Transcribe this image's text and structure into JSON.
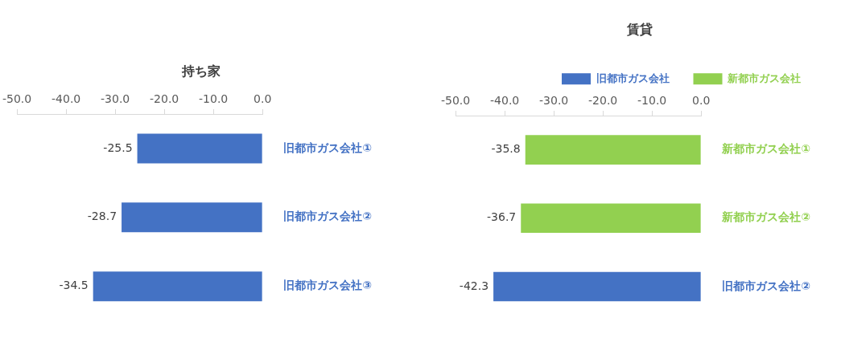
{
  "chart_data": [
    {
      "type": "bar",
      "orientation": "horizontal",
      "title": "持ち家",
      "categories": [
        "旧都市ガス会社①",
        "旧都市ガス会社②",
        "旧都市ガス会社③"
      ],
      "values": [
        -25.5,
        -28.7,
        -34.5
      ],
      "colors": [
        "#4472c4",
        "#4472c4",
        "#4472c4"
      ],
      "xlim": [
        -50,
        0
      ],
      "xticks": [
        {
          "value": -50,
          "label": "-50.0"
        },
        {
          "value": -40,
          "label": "-40.0"
        },
        {
          "value": -30,
          "label": "-30.0"
        },
        {
          "value": -20,
          "label": "-20.0"
        },
        {
          "value": -10,
          "label": "-10.0"
        },
        {
          "value": 0,
          "label": "0.0"
        }
      ],
      "data_labels": true
    },
    {
      "type": "bar",
      "orientation": "horizontal",
      "title": "賃貸",
      "categories": [
        "新都市ガス会社①",
        "新都市ガス会社②",
        "旧都市ガス会社②"
      ],
      "series": [
        {
          "name": "旧都市ガス会社",
          "color": "#4472c4",
          "values": [
            null,
            null,
            -42.3
          ]
        },
        {
          "name": "新都市ガス会社",
          "color": "#92d050",
          "values": [
            -35.8,
            -36.7,
            null
          ]
        }
      ],
      "xlim": [
        -50,
        0
      ],
      "xticks": [
        {
          "value": -50,
          "label": "-50.0"
        },
        {
          "value": -40,
          "label": "-40.0"
        },
        {
          "value": -30,
          "label": "-30.0"
        },
        {
          "value": -20,
          "label": "-20.0"
        },
        {
          "value": -10,
          "label": "-10.0"
        },
        {
          "value": 0,
          "label": "0.0"
        }
      ],
      "data_labels": true,
      "legend": "top right"
    }
  ]
}
